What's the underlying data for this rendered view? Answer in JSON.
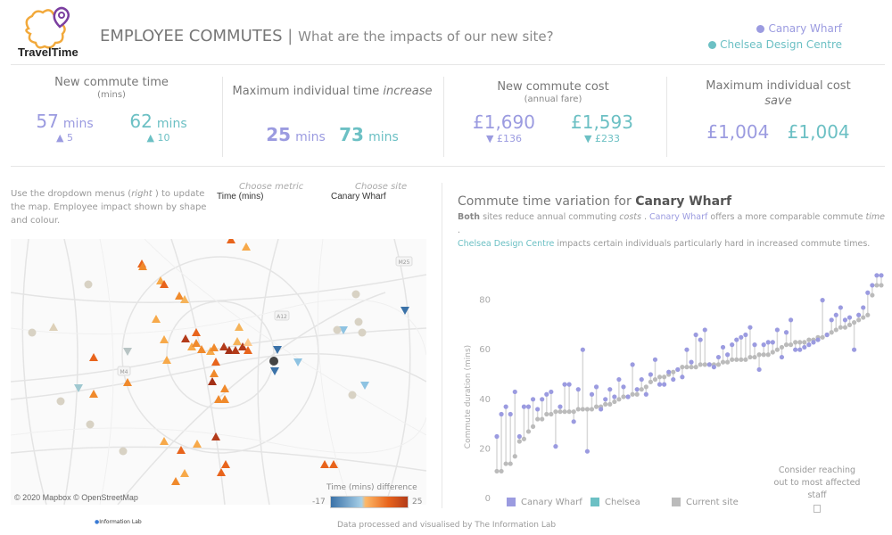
{
  "brand": {
    "name": "TravelTime"
  },
  "header": {
    "title": "EMPLOYEE COMMUTES",
    "separator": "|",
    "subtitle": "What are the impacts of our new site?",
    "legend": [
      {
        "label": "Canary Wharf",
        "color": "#9b9be0"
      },
      {
        "label": "Chelsea Design Centre",
        "color": "#6cc0c4"
      }
    ]
  },
  "kpis": {
    "commute_time": {
      "title": "New commute time",
      "subtitle": "(mins)",
      "canary": {
        "value": "57",
        "unit": "mins",
        "delta": "5",
        "delta_dir": "up"
      },
      "chelsea": {
        "value": "62",
        "unit": "mins",
        "delta": "10",
        "delta_dir": "up"
      }
    },
    "max_time_increase": {
      "title_prefix": "Maximum individual time ",
      "title_em": "increase",
      "canary": {
        "value": "25",
        "unit": "mins"
      },
      "chelsea": {
        "value": "73",
        "unit": "mins"
      }
    },
    "commute_cost": {
      "title": "New commute cost",
      "subtitle": "(annual fare)",
      "canary": {
        "value": "£1,690",
        "delta": "£136",
        "delta_dir": "down"
      },
      "chelsea": {
        "value": "£1,593",
        "delta": "£233",
        "delta_dir": "down"
      }
    },
    "max_cost_save": {
      "title": "Maximum individual cost",
      "title_em": "save",
      "canary": {
        "value": "£1,004"
      },
      "chelsea": {
        "value": "£1,004"
      }
    }
  },
  "controls": {
    "instructions_1": "Use the dropdown menus (",
    "instructions_em": "right",
    "instructions_2": " ) to update the map. Employee impact shown by shape and colour.",
    "metric": {
      "label": "Choose metric",
      "value": "Time (mins)"
    },
    "site": {
      "label": "Choose site",
      "value": "Canary Wharf"
    }
  },
  "map": {
    "road_labels": [
      "M25",
      "A12",
      "M4"
    ],
    "credit": "© 2020 Mapbox © OpenStreetMap",
    "scale": {
      "title": "Time (mins) difference",
      "min": "-17",
      "max": "25"
    }
  },
  "chart": {
    "title_prefix": "Commute time variation for ",
    "title_site": "Canary Wharf",
    "desc": {
      "both": "Both",
      "t1": " sites reduce annual commuting ",
      "costs": "costs",
      "t2": " . ",
      "canary": "Canary Wharf",
      "t3": " offers a more comparable commute ",
      "time": "time",
      "t4": " .",
      "chelsea": "Chelsea Design Centre",
      "t5": " impacts certain individuals particularly hard in increased commute times."
    },
    "legend": [
      {
        "label": "Canary Wharf",
        "color": "#9b9be0"
      },
      {
        "label": "Chelsea",
        "color": "#6cc0c4"
      },
      {
        "label": "Current site",
        "color": "#bbbbbb"
      }
    ],
    "reach_out": "Consider reaching out to most affected staff"
  },
  "chart_data": {
    "type": "scatter",
    "title": "Commute time variation for Canary Wharf",
    "xlabel": "",
    "ylabel": "Commute duration (mins)",
    "ylim": [
      0,
      90
    ],
    "yticks": [
      0,
      20,
      40,
      60,
      80
    ],
    "series": [
      {
        "name": "Current site",
        "color": "#bbbbbb",
        "values": [
          11,
          11,
          14,
          14,
          17,
          23,
          24,
          27,
          29,
          32,
          32,
          34,
          34,
          35,
          35,
          35,
          35,
          35,
          36,
          36,
          36,
          36,
          37,
          37,
          38,
          38,
          39,
          40,
          41,
          41,
          42,
          42,
          44,
          45,
          47,
          48,
          49,
          49,
          50,
          51,
          52,
          53,
          53,
          53,
          53,
          54,
          54,
          54,
          54,
          54,
          55,
          55,
          56,
          56,
          56,
          56,
          57,
          57,
          58,
          58,
          58,
          59,
          60,
          61,
          62,
          62,
          63,
          63,
          63,
          64,
          64,
          65,
          65,
          66,
          67,
          68,
          69,
          69,
          70,
          71,
          72,
          73,
          74,
          82,
          86,
          86
        ]
      },
      {
        "name": "Canary Wharf",
        "color": "#9b9be0",
        "values": [
          25,
          34,
          37,
          34,
          43,
          25,
          37,
          37,
          40,
          36,
          40,
          42,
          43,
          21,
          37,
          46,
          46,
          31,
          44,
          60,
          19,
          42,
          45,
          36,
          40,
          44,
          41,
          48,
          45,
          41,
          54,
          44,
          48,
          42,
          50,
          56,
          46,
          46,
          51,
          48,
          52,
          49,
          60,
          55,
          66,
          64,
          68,
          54,
          53,
          57,
          61,
          58,
          62,
          64,
          65,
          66,
          69,
          62,
          52,
          62,
          63,
          63,
          68,
          57,
          67,
          72,
          60,
          60,
          61,
          62,
          63,
          64,
          80,
          66,
          72,
          74,
          77,
          72,
          73,
          60,
          74,
          77,
          83,
          86,
          90,
          90
        ]
      }
    ]
  }
}
